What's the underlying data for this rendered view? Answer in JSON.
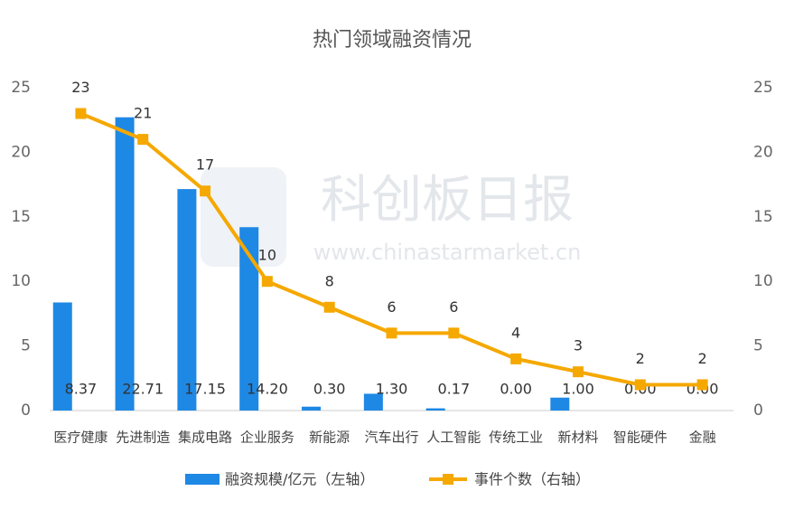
{
  "chart_data": {
    "type": "bar",
    "title": "热门领域融资情况",
    "watermark": {
      "title": "科创板日报",
      "url": "www.chinastarmarket.cn"
    },
    "categories": [
      "医疗健康",
      "先进制造",
      "集成电路",
      "企业服务",
      "新能源",
      "汽车出行",
      "人工智能",
      "传统工业",
      "新材料",
      "智能硬件",
      "金融"
    ],
    "series": [
      {
        "name": "融资规模/亿元（左轴）",
        "type": "bar",
        "color": "#1e88e5",
        "values": [
          8.37,
          22.71,
          17.15,
          14.2,
          0.3,
          1.3,
          0.17,
          0,
          1,
          0,
          0
        ],
        "value_labels": [
          "8.37",
          "22.71",
          "17.15",
          "14.20",
          "0.30",
          "1.30",
          "0.17",
          "0.00",
          "1.00",
          "0.00",
          "0.00"
        ]
      },
      {
        "name": "事件个数（右轴）",
        "type": "line",
        "color": "#f5a800",
        "axis": "y2",
        "values": [
          23,
          21,
          17,
          10,
          8,
          6,
          6,
          4,
          3,
          2,
          2
        ]
      }
    ],
    "ylim": [
      0,
      25
    ],
    "yticks": [
      0,
      5,
      10,
      15,
      20,
      25
    ],
    "y2lim": [
      0,
      25
    ],
    "y2ticks": [
      0,
      5,
      10,
      15,
      20,
      25
    ],
    "legend": "bottom"
  }
}
